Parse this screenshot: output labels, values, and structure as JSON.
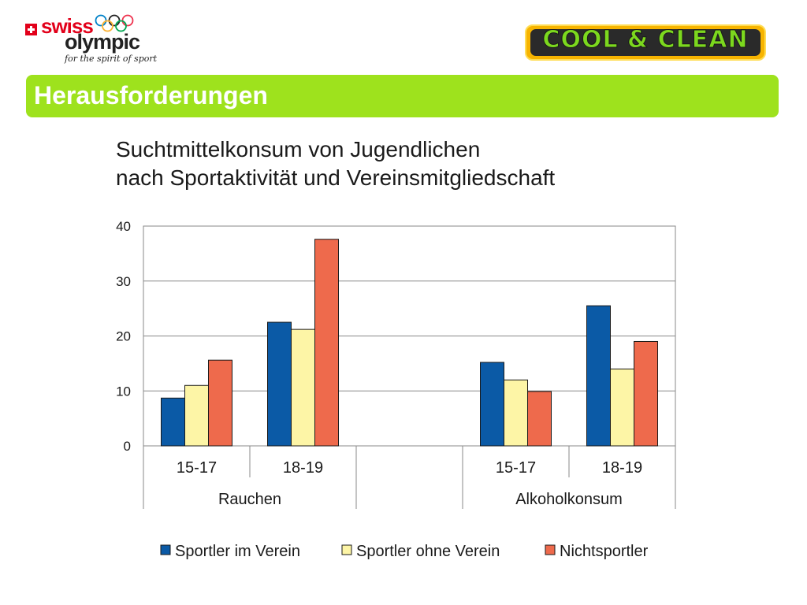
{
  "header": {
    "swiss_olympic": {
      "word1": "swiss",
      "word2": "olympic",
      "tagline": "for the spirit of sport"
    },
    "cool_clean": {
      "text": "COOL & CLEAN"
    }
  },
  "banner": {
    "title": "Herausforderungen",
    "color": "#9ee21d"
  },
  "chart_data": {
    "type": "bar",
    "title": [
      "Suchtmittelkonsum von Jugendlichen",
      "nach Sportaktivität und Vereinsmitgliedschaft"
    ],
    "groups": [
      {
        "name": "Rauchen",
        "categories": [
          "15-17",
          "18-19"
        ]
      },
      {
        "name": "",
        "categories": [
          ""
        ]
      },
      {
        "name": "Alkoholkonsum",
        "categories": [
          "15-17",
          "18-19"
        ]
      }
    ],
    "categories": [
      "15-17",
      "18-19",
      "",
      "15-17",
      "18-19"
    ],
    "series": [
      {
        "name": "Sportler im Verein",
        "color": "#0b5aa6",
        "values": [
          8.7,
          22.5,
          null,
          15.2,
          25.5
        ]
      },
      {
        "name": "Sportler ohne Verein",
        "color": "#fdf5a6",
        "values": [
          11.0,
          21.2,
          null,
          12.0,
          14.0
        ]
      },
      {
        "name": "Nichtsportler",
        "color": "#ee6a4c",
        "values": [
          15.6,
          37.6,
          null,
          9.9,
          19.0
        ]
      }
    ],
    "ylim": [
      0,
      40
    ],
    "yticks": [
      0,
      10,
      20,
      30,
      40
    ],
    "xlabel": "",
    "ylabel": "",
    "grid": true,
    "legend": "bottom"
  }
}
